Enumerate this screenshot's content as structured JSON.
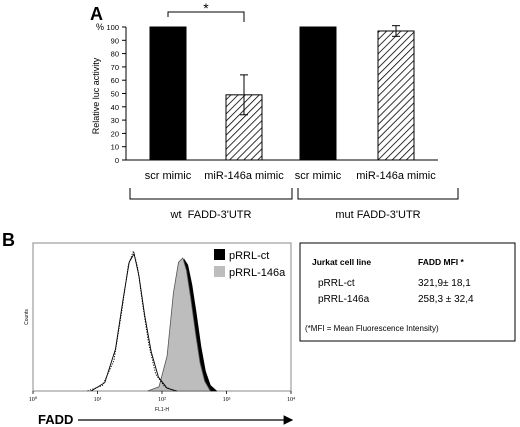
{
  "panel_a": {
    "letter": "A",
    "significance": "*",
    "group_labels": [
      "wt  FADD-3'UTR",
      "mut FADD-3'UTR"
    ]
  },
  "panel_b": {
    "letter": "B",
    "axis_x_title": "FADD",
    "table": {
      "header": [
        "Jurkat cell line",
        "FADD MFI *"
      ],
      "rows": [
        [
          "pRRL-ct",
          "321,9± 18,1"
        ],
        [
          "pRRL-146a",
          "258,3 ± 32,4"
        ]
      ],
      "footnote": "(*MFI = Mean Fluorescence Intensity)"
    }
  },
  "colors": {
    "solid_bar": "#000000",
    "hatch": "#000000",
    "pRRL_ct": "#000000",
    "pRRL_146a": "#bdbdbd"
  },
  "chart_data": [
    {
      "type": "bar",
      "categories": [
        "scr mimic",
        "miR-146a mimic",
        "scr mimic",
        "miR-146a mimic"
      ],
      "values": [
        100,
        49,
        100,
        97
      ],
      "errors": [
        0,
        15,
        0,
        4
      ],
      "fills": [
        "solid",
        "hatched",
        "solid",
        "hatched"
      ],
      "title": "",
      "xlabel": "",
      "ylabel": "Relative luc activity",
      "yunit": "%",
      "ylim": [
        0,
        100
      ],
      "yticks": [
        0,
        10,
        20,
        30,
        40,
        50,
        60,
        70,
        80,
        90,
        100
      ]
    },
    {
      "type": "area",
      "xscale": "log",
      "xlim": [
        1,
        10000
      ],
      "xticks": [
        1,
        10,
        100,
        1000,
        10000
      ],
      "xtick_labels": [
        "10⁰",
        "10¹",
        "10²",
        "10³",
        "10⁴"
      ],
      "xlabel": "FL1-H",
      "ylabel": "Counts",
      "series": [
        {
          "name": "pRRL-ct",
          "fill": "black",
          "points": [
            [
              70,
              0
            ],
            [
              100,
              2
            ],
            [
              130,
              12
            ],
            [
              160,
              55
            ],
            [
              190,
              85
            ],
            [
              220,
              94
            ],
            [
              250,
              90
            ],
            [
              290,
              76
            ],
            [
              340,
              55
            ],
            [
              400,
              32
            ],
            [
              470,
              14
            ],
            [
              560,
              4
            ],
            [
              700,
              0
            ]
          ]
        },
        {
          "name": "pRRL-146a",
          "fill": "gray",
          "points": [
            [
              60,
              0
            ],
            [
              90,
              3
            ],
            [
              120,
              25
            ],
            [
              150,
              70
            ],
            [
              180,
              92
            ],
            [
              210,
              95
            ],
            [
              240,
              86
            ],
            [
              280,
              66
            ],
            [
              330,
              42
            ],
            [
              390,
              20
            ],
            [
              460,
              7
            ],
            [
              560,
              0
            ]
          ]
        },
        {
          "name": "",
          "fill": "none",
          "stroke": "dotted",
          "points": [
            [
              7,
              0
            ],
            [
              12,
              4
            ],
            [
              18,
              22
            ],
            [
              24,
              58
            ],
            [
              30,
              90
            ],
            [
              36,
              100
            ],
            [
              42,
              88
            ],
            [
              50,
              62
            ],
            [
              62,
              34
            ],
            [
              80,
              12
            ],
            [
              110,
              3
            ],
            [
              160,
              0
            ]
          ]
        },
        {
          "name": "",
          "fill": "none",
          "stroke": "solid",
          "points": [
            [
              8,
              0
            ],
            [
              13,
              6
            ],
            [
              19,
              30
            ],
            [
              25,
              66
            ],
            [
              31,
              92
            ],
            [
              37,
              98
            ],
            [
              44,
              82
            ],
            [
              54,
              54
            ],
            [
              68,
              28
            ],
            [
              88,
              10
            ],
            [
              120,
              2
            ],
            [
              170,
              0
            ]
          ]
        }
      ]
    }
  ]
}
